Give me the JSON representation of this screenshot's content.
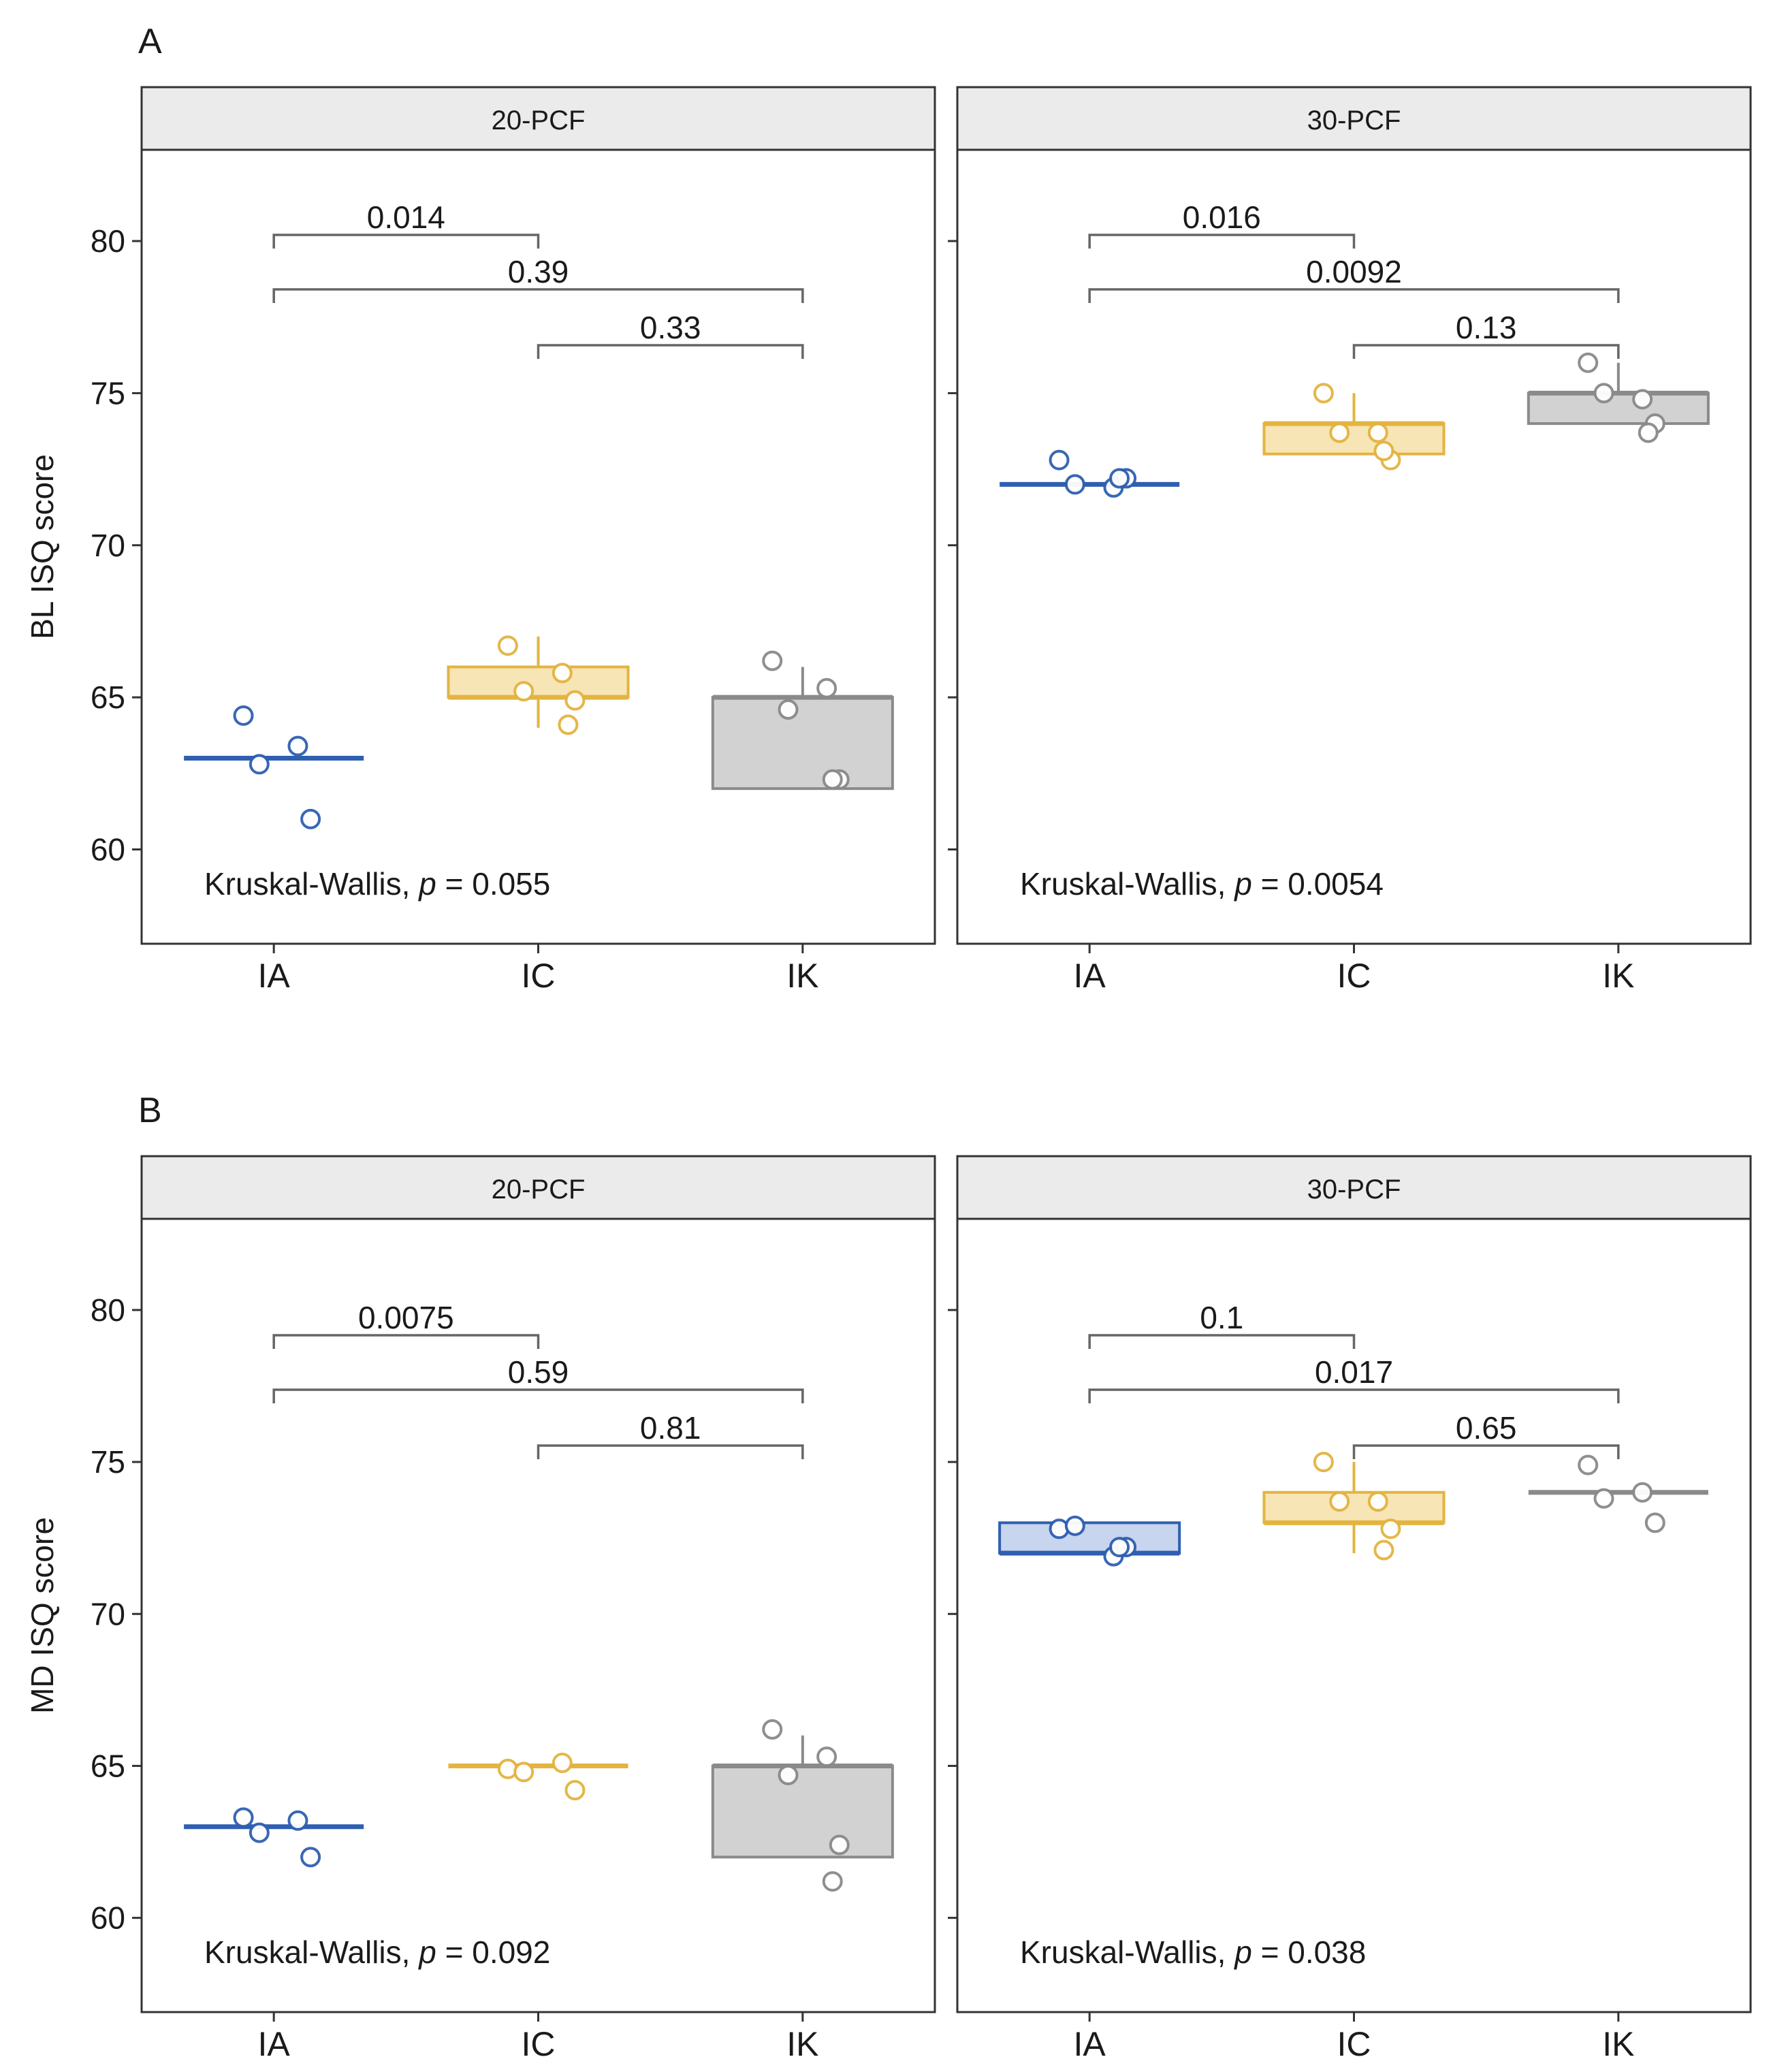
{
  "panels": [
    {
      "label": "A",
      "ylabel": "BL ISQ score",
      "facets": [
        {
          "strip": "20-PCF",
          "kruskal_prefix": "Kruskal-Wallis, ",
          "kruskal_p_symbol": "p",
          "kruskal_value": " = 0.055"
        },
        {
          "strip": "30-PCF",
          "kruskal_prefix": "Kruskal-Wallis, ",
          "kruskal_p_symbol": "p",
          "kruskal_value": " = 0.0054"
        }
      ]
    },
    {
      "label": "B",
      "ylabel": "MD ISQ score",
      "facets": [
        {
          "strip": "20-PCF",
          "kruskal_prefix": "Kruskal-Wallis, ",
          "kruskal_p_symbol": "p",
          "kruskal_value": " = 0.092"
        },
        {
          "strip": "30-PCF",
          "kruskal_prefix": "Kruskal-Wallis, ",
          "kruskal_p_symbol": "p",
          "kruskal_value": " = 0.038"
        }
      ]
    }
  ],
  "chart_data": [
    {
      "type": "box",
      "panel": "A",
      "facet": "20-PCF",
      "ylabel": "BL ISQ score",
      "categories": [
        "IA",
        "IC",
        "IK"
      ],
      "yticks": [
        60,
        65,
        70,
        75,
        80
      ],
      "ylim": [
        56.9,
        83.0
      ],
      "colors": {
        "IA": "#2f5fb0",
        "IC": "#e3b440",
        "IK": "#8a8a8a"
      },
      "fills": {
        "IA": "#c7d5ee",
        "IC": "#f7e5b6",
        "IK": "#d2d2d2"
      },
      "boxes": [
        {
          "category": "IA",
          "q1": 63,
          "median": 63,
          "q3": 63,
          "whisker_low": 63,
          "whisker_high": 63
        },
        {
          "category": "IC",
          "q1": 65,
          "median": 65,
          "q3": 66,
          "whisker_low": 64,
          "whisker_high": 67
        },
        {
          "category": "IK",
          "q1": 62,
          "median": 65,
          "q3": 65,
          "whisker_low": 62,
          "whisker_high": 66
        }
      ],
      "points": [
        {
          "category": "IA",
          "values": [
            64.4,
            63.4,
            62.8,
            61.0
          ]
        },
        {
          "category": "IC",
          "values": [
            66.7,
            65.8,
            65.2,
            64.9,
            64.1
          ]
        },
        {
          "category": "IK",
          "values": [
            66.2,
            65.3,
            64.6,
            62.3,
            62.3
          ]
        }
      ],
      "comparisons": [
        {
          "groups": [
            "IA",
            "IC"
          ],
          "p_label": "0.014"
        },
        {
          "groups": [
            "IA",
            "IK"
          ],
          "p_label": "0.39"
        },
        {
          "groups": [
            "IC",
            "IK"
          ],
          "p_label": "0.33"
        }
      ],
      "kruskal_wallis_p": 0.055
    },
    {
      "type": "box",
      "panel": "A",
      "facet": "30-PCF",
      "ylabel": "BL ISQ score",
      "categories": [
        "IA",
        "IC",
        "IK"
      ],
      "yticks": [
        60,
        65,
        70,
        75,
        80
      ],
      "ylim": [
        56.9,
        83.0
      ],
      "colors": {
        "IA": "#2f5fb0",
        "IC": "#e3b440",
        "IK": "#8a8a8a"
      },
      "fills": {
        "IA": "#c7d5ee",
        "IC": "#f7e5b6",
        "IK": "#d2d2d2"
      },
      "boxes": [
        {
          "category": "IA",
          "q1": 72,
          "median": 72,
          "q3": 72,
          "whisker_low": 72,
          "whisker_high": 72
        },
        {
          "category": "IC",
          "q1": 73,
          "median": 74,
          "q3": 74,
          "whisker_low": 73,
          "whisker_high": 75
        },
        {
          "category": "IK",
          "q1": 74,
          "median": 75,
          "q3": 75,
          "whisker_low": 74,
          "whisker_high": 76
        }
      ],
      "points": [
        {
          "category": "IA",
          "values": [
            72.8,
            71.9,
            72.0,
            72.2,
            72.2
          ]
        },
        {
          "category": "IC",
          "values": [
            75.0,
            73.7,
            73.7,
            72.8,
            73.1
          ]
        },
        {
          "category": "IK",
          "values": [
            76.0,
            74.8,
            75.0,
            74.0,
            73.7
          ]
        }
      ],
      "comparisons": [
        {
          "groups": [
            "IA",
            "IC"
          ],
          "p_label": "0.016"
        },
        {
          "groups": [
            "IA",
            "IK"
          ],
          "p_label": "0.0092"
        },
        {
          "groups": [
            "IC",
            "IK"
          ],
          "p_label": "0.13"
        }
      ],
      "kruskal_wallis_p": 0.0054
    },
    {
      "type": "box",
      "panel": "B",
      "facet": "20-PCF",
      "ylabel": "MD ISQ score",
      "categories": [
        "IA",
        "IC",
        "IK"
      ],
      "yticks": [
        60,
        65,
        70,
        75,
        80
      ],
      "ylim": [
        56.9,
        83.0
      ],
      "colors": {
        "IA": "#2f5fb0",
        "IC": "#e3b440",
        "IK": "#8a8a8a"
      },
      "fills": {
        "IA": "#c7d5ee",
        "IC": "#f7e5b6",
        "IK": "#d2d2d2"
      },
      "boxes": [
        {
          "category": "IA",
          "q1": 63,
          "median": 63,
          "q3": 63,
          "whisker_low": 63,
          "whisker_high": 63
        },
        {
          "category": "IC",
          "q1": 65,
          "median": 65,
          "q3": 65,
          "whisker_low": 65,
          "whisker_high": 65
        },
        {
          "category": "IK",
          "q1": 62,
          "median": 65,
          "q3": 65,
          "whisker_low": 62,
          "whisker_high": 66
        }
      ],
      "points": [
        {
          "category": "IA",
          "values": [
            63.3,
            63.2,
            62.8,
            62.0
          ]
        },
        {
          "category": "IC",
          "values": [
            64.9,
            65.1,
            64.8,
            64.2
          ]
        },
        {
          "category": "IK",
          "values": [
            66.2,
            65.3,
            64.7,
            62.4,
            61.2
          ]
        }
      ],
      "comparisons": [
        {
          "groups": [
            "IA",
            "IC"
          ],
          "p_label": "0.0075"
        },
        {
          "groups": [
            "IA",
            "IK"
          ],
          "p_label": "0.59"
        },
        {
          "groups": [
            "IC",
            "IK"
          ],
          "p_label": "0.81"
        }
      ],
      "kruskal_wallis_p": 0.092
    },
    {
      "type": "box",
      "panel": "B",
      "facet": "30-PCF",
      "ylabel": "MD ISQ score",
      "categories": [
        "IA",
        "IC",
        "IK"
      ],
      "yticks": [
        60,
        65,
        70,
        75,
        80
      ],
      "ylim": [
        56.9,
        83.0
      ],
      "colors": {
        "IA": "#2f5fb0",
        "IC": "#e3b440",
        "IK": "#8a8a8a"
      },
      "fills": {
        "IA": "#c7d5ee",
        "IC": "#f7e5b6",
        "IK": "#d2d2d2"
      },
      "boxes": [
        {
          "category": "IA",
          "q1": 72,
          "median": 72,
          "q3": 73,
          "whisker_low": 72,
          "whisker_high": 73
        },
        {
          "category": "IC",
          "q1": 73,
          "median": 73,
          "q3": 74,
          "whisker_low": 72,
          "whisker_high": 75
        },
        {
          "category": "IK",
          "q1": 74,
          "median": 74,
          "q3": 74,
          "whisker_low": 74,
          "whisker_high": 74
        }
      ],
      "points": [
        {
          "category": "IA",
          "values": [
            72.8,
            71.9,
            72.9,
            72.2,
            72.2
          ]
        },
        {
          "category": "IC",
          "values": [
            75.0,
            73.7,
            73.7,
            72.8,
            72.1
          ]
        },
        {
          "category": "IK",
          "values": [
            74.9,
            74.0,
            73.8,
            73.0
          ]
        }
      ],
      "comparisons": [
        {
          "groups": [
            "IA",
            "IC"
          ],
          "p_label": "0.1"
        },
        {
          "groups": [
            "IA",
            "IK"
          ],
          "p_label": "0.017"
        },
        {
          "groups": [
            "IC",
            "IK"
          ],
          "p_label": "0.65"
        }
      ],
      "kruskal_wallis_p": 0.038
    }
  ]
}
